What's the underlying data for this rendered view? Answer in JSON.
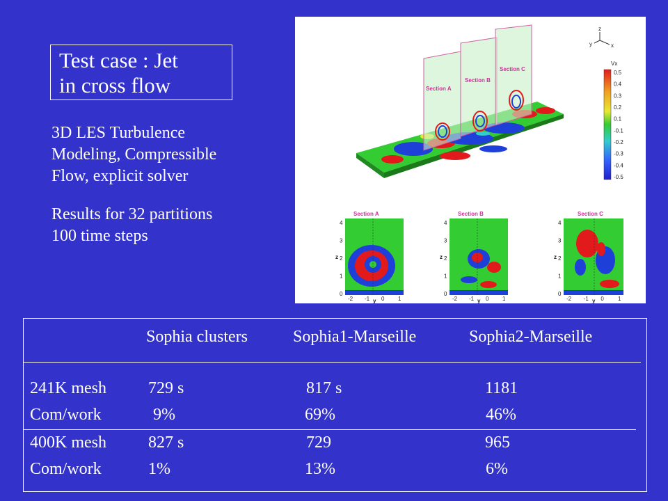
{
  "title": {
    "line1": "Test case : Jet",
    "line2": "in cross flow"
  },
  "description": {
    "lines": [
      "3D LES Turbulence",
      "Modeling, Compressible",
      "Flow, explicit solver"
    ],
    "results_lines": [
      "Results for 32 partitions",
      "100 time steps"
    ]
  },
  "figure": {
    "section_labels": [
      "Section A",
      "Section B",
      "Section C"
    ],
    "legend": {
      "title": "Vx",
      "ticks": [
        "0.5",
        "0.4",
        "0.3",
        "0.2",
        "0.1",
        "-0.1",
        "-0.2",
        "-0.3",
        "-0.4",
        "-0.5"
      ]
    },
    "axes": {
      "z_label": "z",
      "y_label": "y",
      "x_label": "x",
      "z_ticks": [
        "4",
        "3",
        "2",
        "1",
        "0"
      ],
      "y_ticks": [
        "-2",
        "-1",
        "0",
        "1"
      ]
    },
    "colors": {
      "red": "#e31a1c",
      "green": "#33cc33",
      "blue": "#1f3fd9",
      "yellow": "#e8e833",
      "cyan": "#33cccc",
      "panel_fill": "#c8f0c8"
    }
  },
  "table": {
    "headers": [
      "Sophia clusters",
      "Sophia1-Marseille",
      "Sophia2-Marseille"
    ],
    "rows": [
      {
        "label": "241K mesh",
        "values": [
          "729 s",
          "817 s",
          "1181"
        ]
      },
      {
        "label": "Com/work",
        "values": [
          "9%",
          "69%",
          "46%"
        ]
      },
      {
        "label": "400K mesh",
        "values": [
          "827 s",
          "729",
          "965"
        ]
      },
      {
        "label": "Com/work",
        "values": [
          "1%",
          "13%",
          "6%"
        ]
      }
    ]
  },
  "theme": {
    "background": "#3333cc",
    "text": "#ffffff"
  }
}
